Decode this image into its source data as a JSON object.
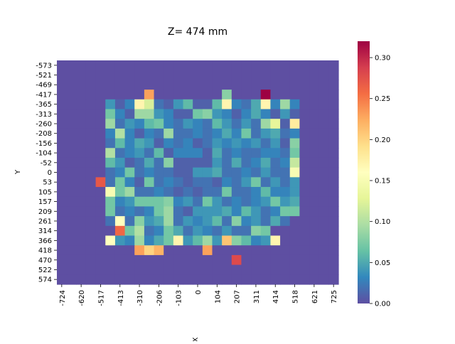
{
  "chart_data": {
    "type": "heatmap",
    "title": "Z= 474 mm",
    "xlabel": "X",
    "ylabel": "Y",
    "colormap": "Spectral_r",
    "x_tick_labels": [
      "-724",
      "-620",
      "-517",
      "-413",
      "-310",
      "-206",
      "-103",
      "0",
      "104",
      "207",
      "311",
      "414",
      "518",
      "621",
      "725"
    ],
    "y_tick_labels": [
      "-573",
      "-521",
      "-469",
      "-417",
      "-365",
      "-313",
      "-260",
      "-208",
      "-156",
      "-104",
      "-52",
      "0",
      "53",
      "105",
      "157",
      "209",
      "261",
      "314",
      "366",
      "418",
      "470",
      "522",
      "574"
    ],
    "n_cols": 29,
    "n_rows": 23,
    "vmin": 0.0,
    "vmax": 0.32,
    "colorbar_ticks": [
      "0.00",
      "0.05",
      "0.10",
      "0.15",
      "0.20",
      "0.25",
      "0.30"
    ],
    "colorbar_tick_values": [
      0,
      0.05,
      0.1,
      0.15,
      0.2,
      0.25,
      0.3
    ],
    "background_value": 0.0,
    "cells": [
      [
        3,
        9,
        0.23
      ],
      [
        3,
        17,
        0.08
      ],
      [
        3,
        21,
        0.32
      ],
      [
        4,
        5,
        0.04
      ],
      [
        4,
        6,
        0.01
      ],
      [
        4,
        7,
        0.03
      ],
      [
        4,
        8,
        0.17
      ],
      [
        4,
        9,
        0.12
      ],
      [
        4,
        10,
        0.02
      ],
      [
        4,
        11,
        0.01
      ],
      [
        4,
        12,
        0.04
      ],
      [
        4,
        13,
        0.06
      ],
      [
        4,
        14,
        0.01
      ],
      [
        4,
        15,
        0.01
      ],
      [
        4,
        16,
        0.06
      ],
      [
        4,
        17,
        0.17
      ],
      [
        4,
        18,
        0.03
      ],
      [
        4,
        19,
        0.02
      ],
      [
        4,
        20,
        0.05
      ],
      [
        4,
        21,
        0.17
      ],
      [
        4,
        22,
        0.03
      ],
      [
        4,
        23,
        0.09
      ],
      [
        4,
        24,
        0.03
      ],
      [
        5,
        5,
        0.07
      ],
      [
        5,
        6,
        0.03
      ],
      [
        5,
        7,
        0.01
      ],
      [
        5,
        8,
        0.09
      ],
      [
        5,
        9,
        0.09
      ],
      [
        5,
        10,
        0.04
      ],
      [
        5,
        11,
        0.03
      ],
      [
        5,
        12,
        0.01
      ],
      [
        5,
        13,
        0.01
      ],
      [
        5,
        14,
        0.07
      ],
      [
        5,
        15,
        0.08
      ],
      [
        5,
        16,
        0.04
      ],
      [
        5,
        17,
        0.03
      ],
      [
        5,
        18,
        0.01
      ],
      [
        5,
        19,
        0.03
      ],
      [
        5,
        20,
        0.05
      ],
      [
        5,
        21,
        0.03
      ],
      [
        5,
        22,
        0.01
      ],
      [
        5,
        23,
        0.04
      ],
      [
        5,
        24,
        0.01
      ],
      [
        6,
        5,
        0.09
      ],
      [
        6,
        6,
        0.02
      ],
      [
        6,
        7,
        0.04
      ],
      [
        6,
        8,
        0.03
      ],
      [
        6,
        9,
        0.06
      ],
      [
        6,
        10,
        0.07
      ],
      [
        6,
        11,
        0.03
      ],
      [
        6,
        12,
        0.02
      ],
      [
        6,
        13,
        0.04
      ],
      [
        6,
        14,
        0.03
      ],
      [
        6,
        15,
        0.02
      ],
      [
        6,
        16,
        0.06
      ],
      [
        6,
        17,
        0.04
      ],
      [
        6,
        18,
        0.02
      ],
      [
        6,
        19,
        0.04
      ],
      [
        6,
        20,
        0.02
      ],
      [
        6,
        21,
        0.09
      ],
      [
        6,
        22,
        0.13
      ],
      [
        6,
        23,
        0.01
      ],
      [
        6,
        24,
        0.18
      ],
      [
        7,
        5,
        0.03
      ],
      [
        7,
        6,
        0.1
      ],
      [
        7,
        7,
        0.03
      ],
      [
        7,
        8,
        0.01
      ],
      [
        7,
        9,
        0.03
      ],
      [
        7,
        10,
        0.02
      ],
      [
        7,
        11,
        0.09
      ],
      [
        7,
        12,
        0.02
      ],
      [
        7,
        13,
        0.02
      ],
      [
        7,
        14,
        0.03
      ],
      [
        7,
        15,
        0.02
      ],
      [
        7,
        16,
        0.03
      ],
      [
        7,
        17,
        0.05
      ],
      [
        7,
        18,
        0.03
      ],
      [
        7,
        19,
        0.07
      ],
      [
        7,
        20,
        0.02
      ],
      [
        7,
        21,
        0.04
      ],
      [
        7,
        22,
        0.05
      ],
      [
        7,
        23,
        0.02
      ],
      [
        7,
        24,
        0.03
      ],
      [
        8,
        5,
        0.02
      ],
      [
        8,
        6,
        0.06
      ],
      [
        8,
        7,
        0.03
      ],
      [
        8,
        8,
        0.05
      ],
      [
        8,
        9,
        0.04
      ],
      [
        8,
        10,
        0.01
      ],
      [
        8,
        11,
        0.03
      ],
      [
        8,
        12,
        0.02
      ],
      [
        8,
        13,
        0.03
      ],
      [
        8,
        14,
        0.01
      ],
      [
        8,
        15,
        0.02
      ],
      [
        8,
        16,
        0.04
      ],
      [
        8,
        17,
        0.03
      ],
      [
        8,
        18,
        0.04
      ],
      [
        8,
        19,
        0.03
      ],
      [
        8,
        20,
        0.04
      ],
      [
        8,
        21,
        0.02
      ],
      [
        8,
        22,
        0.04
      ],
      [
        8,
        23,
        0.01
      ],
      [
        8,
        24,
        0.08
      ],
      [
        9,
        5,
        0.1
      ],
      [
        9,
        6,
        0.02
      ],
      [
        9,
        7,
        0.03
      ],
      [
        9,
        8,
        0.04
      ],
      [
        9,
        9,
        0.02
      ],
      [
        9,
        10,
        0.06
      ],
      [
        9,
        11,
        0.01
      ],
      [
        9,
        12,
        0.03
      ],
      [
        9,
        13,
        0.03
      ],
      [
        9,
        14,
        0.03
      ],
      [
        9,
        15,
        0.01
      ],
      [
        9,
        16,
        0.05
      ],
      [
        9,
        17,
        0.02
      ],
      [
        9,
        18,
        0.03
      ],
      [
        9,
        19,
        0.02
      ],
      [
        9,
        20,
        0.02
      ],
      [
        9,
        21,
        0.03
      ],
      [
        9,
        22,
        0.03
      ],
      [
        9,
        23,
        0.02
      ],
      [
        9,
        24,
        0.07
      ],
      [
        10,
        5,
        0.06
      ],
      [
        10,
        6,
        0.04
      ],
      [
        10,
        7,
        0.01
      ],
      [
        10,
        8,
        0.02
      ],
      [
        10,
        9,
        0.05
      ],
      [
        10,
        10,
        0.02
      ],
      [
        10,
        11,
        0.08
      ],
      [
        10,
        12,
        0.01
      ],
      [
        10,
        13,
        0.01
      ],
      [
        10,
        14,
        0.01
      ],
      [
        10,
        15,
        0.01
      ],
      [
        10,
        16,
        0.04
      ],
      [
        10,
        17,
        0.02
      ],
      [
        10,
        18,
        0.05
      ],
      [
        10,
        19,
        0.02
      ],
      [
        10,
        20,
        0.03
      ],
      [
        10,
        21,
        0.05
      ],
      [
        10,
        22,
        0.02
      ],
      [
        10,
        23,
        0.03
      ],
      [
        10,
        24,
        0.11
      ],
      [
        11,
        5,
        0.02
      ],
      [
        11,
        6,
        0.03
      ],
      [
        11,
        7,
        0.07
      ],
      [
        11,
        8,
        0.02
      ],
      [
        11,
        9,
        0.03
      ],
      [
        11,
        10,
        0.02
      ],
      [
        11,
        11,
        0.02
      ],
      [
        11,
        12,
        0.01
      ],
      [
        11,
        13,
        0.01
      ],
      [
        11,
        14,
        0.04
      ],
      [
        11,
        15,
        0.04
      ],
      [
        11,
        16,
        0.05
      ],
      [
        11,
        17,
        0.02
      ],
      [
        11,
        18,
        0.02
      ],
      [
        11,
        19,
        0.03
      ],
      [
        11,
        20,
        0.02
      ],
      [
        11,
        21,
        0.04
      ],
      [
        11,
        22,
        0.02
      ],
      [
        11,
        23,
        0.02
      ],
      [
        11,
        24,
        0.15
      ],
      [
        12,
        4,
        0.27
      ],
      [
        12,
        5,
        0.02
      ],
      [
        12,
        6,
        0.07
      ],
      [
        12,
        7,
        0.03
      ],
      [
        12,
        8,
        0.01
      ],
      [
        12,
        9,
        0.07
      ],
      [
        12,
        10,
        0.02
      ],
      [
        12,
        11,
        0.03
      ],
      [
        12,
        12,
        0.02
      ],
      [
        12,
        13,
        0.01
      ],
      [
        12,
        14,
        0.02
      ],
      [
        12,
        15,
        0.02
      ],
      [
        12,
        16,
        0.01
      ],
      [
        12,
        17,
        0.03
      ],
      [
        12,
        18,
        0.02
      ],
      [
        12,
        19,
        0.04
      ],
      [
        12,
        20,
        0.07
      ],
      [
        12,
        21,
        0.02
      ],
      [
        12,
        22,
        0.04
      ],
      [
        12,
        23,
        0.02
      ],
      [
        12,
        24,
        0.04
      ],
      [
        13,
        5,
        0.15
      ],
      [
        13,
        6,
        0.07
      ],
      [
        13,
        7,
        0.09
      ],
      [
        13,
        8,
        0.02
      ],
      [
        13,
        9,
        0.02
      ],
      [
        13,
        10,
        0.03
      ],
      [
        13,
        11,
        0.02
      ],
      [
        13,
        12,
        0.01
      ],
      [
        13,
        13,
        0.02
      ],
      [
        13,
        14,
        0.01
      ],
      [
        13,
        15,
        0.02
      ],
      [
        13,
        16,
        0.02
      ],
      [
        13,
        17,
        0.07
      ],
      [
        13,
        18,
        0.02
      ],
      [
        13,
        19,
        0.02
      ],
      [
        13,
        20,
        0.03
      ],
      [
        13,
        21,
        0.06
      ],
      [
        13,
        22,
        0.03
      ],
      [
        13,
        23,
        0.03
      ],
      [
        13,
        24,
        0.04
      ],
      [
        14,
        5,
        0.07
      ],
      [
        14,
        6,
        0.03
      ],
      [
        14,
        7,
        0.04
      ],
      [
        14,
        8,
        0.07
      ],
      [
        14,
        9,
        0.07
      ],
      [
        14,
        10,
        0.07
      ],
      [
        14,
        11,
        0.08
      ],
      [
        14,
        12,
        0.03
      ],
      [
        14,
        13,
        0.04
      ],
      [
        14,
        14,
        0.02
      ],
      [
        14,
        15,
        0.07
      ],
      [
        14,
        16,
        0.04
      ],
      [
        14,
        17,
        0.02
      ],
      [
        14,
        18,
        0.03
      ],
      [
        14,
        19,
        0.02
      ],
      [
        14,
        20,
        0.03
      ],
      [
        14,
        21,
        0.04
      ],
      [
        14,
        22,
        0.07
      ],
      [
        14,
        23,
        0.04
      ],
      [
        14,
        24,
        0.05
      ],
      [
        15,
        5,
        0.07
      ],
      [
        15,
        6,
        0.02
      ],
      [
        15,
        7,
        0.03
      ],
      [
        15,
        8,
        0.02
      ],
      [
        15,
        9,
        0.03
      ],
      [
        15,
        10,
        0.07
      ],
      [
        15,
        11,
        0.09
      ],
      [
        15,
        12,
        0.02
      ],
      [
        15,
        13,
        0.01
      ],
      [
        15,
        14,
        0.04
      ],
      [
        15,
        15,
        0.04
      ],
      [
        15,
        16,
        0.04
      ],
      [
        15,
        17,
        0.05
      ],
      [
        15,
        18,
        0.03
      ],
      [
        15,
        19,
        0.06
      ],
      [
        15,
        20,
        0.04
      ],
      [
        15,
        21,
        0.02
      ],
      [
        15,
        22,
        0.03
      ],
      [
        15,
        23,
        0.07
      ],
      [
        15,
        24,
        0.07
      ],
      [
        16,
        5,
        0.02
      ],
      [
        16,
        6,
        0.16
      ],
      [
        16,
        7,
        0.02
      ],
      [
        16,
        8,
        0.08
      ],
      [
        16,
        9,
        0.04
      ],
      [
        16,
        10,
        0.05
      ],
      [
        16,
        11,
        0.09
      ],
      [
        16,
        12,
        0.02
      ],
      [
        16,
        13,
        0.04
      ],
      [
        16,
        14,
        0.03
      ],
      [
        16,
        15,
        0.04
      ],
      [
        16,
        16,
        0.06
      ],
      [
        16,
        17,
        0.02
      ],
      [
        16,
        18,
        0.08
      ],
      [
        16,
        19,
        0.03
      ],
      [
        16,
        20,
        0.04
      ],
      [
        16,
        21,
        0.02
      ],
      [
        16,
        22,
        0.05
      ],
      [
        16,
        23,
        0.02
      ],
      [
        17,
        6,
        0.26
      ],
      [
        17,
        7,
        0.07
      ],
      [
        17,
        8,
        0.1
      ],
      [
        17,
        9,
        0.02
      ],
      [
        17,
        10,
        0.03
      ],
      [
        17,
        11,
        0.07
      ],
      [
        17,
        12,
        0.05
      ],
      [
        17,
        13,
        0.02
      ],
      [
        17,
        14,
        0.04
      ],
      [
        17,
        15,
        0.03
      ],
      [
        17,
        16,
        0.02
      ],
      [
        17,
        17,
        0.04
      ],
      [
        17,
        18,
        0.02
      ],
      [
        17,
        19,
        0.02
      ],
      [
        17,
        20,
        0.08
      ],
      [
        17,
        21,
        0.07
      ],
      [
        18,
        5,
        0.16
      ],
      [
        18,
        6,
        0.04
      ],
      [
        18,
        7,
        0.03
      ],
      [
        18,
        8,
        0.09
      ],
      [
        18,
        9,
        0.03
      ],
      [
        18,
        10,
        0.05
      ],
      [
        18,
        11,
        0.07
      ],
      [
        18,
        12,
        0.17
      ],
      [
        18,
        13,
        0.04
      ],
      [
        18,
        14,
        0.06
      ],
      [
        18,
        15,
        0.09
      ],
      [
        18,
        16,
        0.04
      ],
      [
        18,
        17,
        0.21
      ],
      [
        18,
        18,
        0.08
      ],
      [
        18,
        19,
        0.06
      ],
      [
        18,
        20,
        0.03
      ],
      [
        18,
        21,
        0.04
      ],
      [
        18,
        22,
        0.17
      ],
      [
        19,
        8,
        0.23
      ],
      [
        19,
        9,
        0.2
      ],
      [
        19,
        10,
        0.22
      ],
      [
        19,
        15,
        0.23
      ],
      [
        20,
        18,
        0.28
      ]
    ]
  }
}
